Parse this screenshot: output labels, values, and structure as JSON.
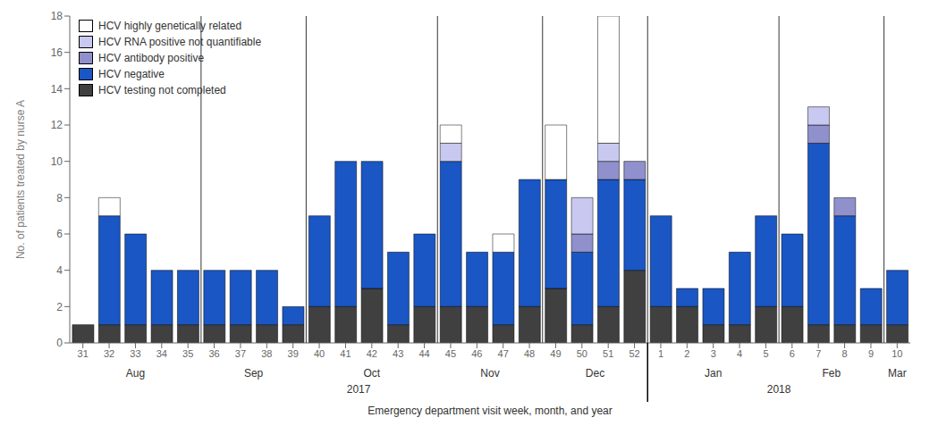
{
  "chart_data": {
    "type": "bar",
    "stacked": true,
    "categories": [
      "31",
      "32",
      "33",
      "34",
      "35",
      "36",
      "37",
      "38",
      "39",
      "40",
      "41",
      "42",
      "43",
      "44",
      "45",
      "46",
      "47",
      "48",
      "49",
      "50",
      "51",
      "52",
      "1",
      "2",
      "3",
      "4",
      "5",
      "6",
      "7",
      "8",
      "9",
      "10"
    ],
    "series": [
      {
        "name": "HCV testing not completed",
        "color": "#404040",
        "values": [
          1,
          1,
          1,
          1,
          1,
          1,
          1,
          1,
          1,
          2,
          2,
          3,
          1,
          2,
          2,
          2,
          1,
          2,
          3,
          1,
          2,
          4,
          2,
          2,
          1,
          1,
          2,
          2,
          1,
          1,
          1,
          1
        ]
      },
      {
        "name": "HCV negative",
        "color": "#1A56C4",
        "values": [
          0,
          6,
          5,
          3,
          3,
          3,
          3,
          3,
          1,
          5,
          8,
          7,
          4,
          4,
          8,
          3,
          4,
          7,
          6,
          4,
          7,
          5,
          5,
          1,
          2,
          4,
          5,
          4,
          10,
          6,
          2,
          3
        ]
      },
      {
        "name": "HCV antibody positive",
        "color": "#9090CC",
        "values": [
          0,
          0,
          0,
          0,
          0,
          0,
          0,
          0,
          0,
          0,
          0,
          0,
          0,
          0,
          0,
          0,
          0,
          0,
          0,
          1,
          1,
          1,
          0,
          0,
          0,
          0,
          0,
          0,
          1,
          1,
          0,
          0
        ]
      },
      {
        "name": "HCV RNA positive not quantifiable",
        "color": "#C8C8F0",
        "values": [
          0,
          0,
          0,
          0,
          0,
          0,
          0,
          0,
          0,
          0,
          0,
          0,
          0,
          0,
          1,
          0,
          0,
          0,
          0,
          2,
          1,
          0,
          0,
          0,
          0,
          0,
          0,
          0,
          1,
          0,
          0,
          0
        ]
      },
      {
        "name": "HCV highly genetically related",
        "color": "#FFFFFF",
        "values": [
          0,
          1,
          0,
          0,
          0,
          0,
          0,
          0,
          0,
          0,
          0,
          0,
          0,
          0,
          1,
          0,
          1,
          0,
          3,
          0,
          7,
          0,
          0,
          0,
          0,
          0,
          0,
          0,
          0,
          0,
          0,
          0
        ]
      }
    ],
    "ylim": [
      0,
      18
    ],
    "yticks": [
      0,
      2,
      4,
      6,
      8,
      10,
      12,
      14,
      16,
      18
    ],
    "ylabel": "No. of patients treated by nurse A",
    "xlabel": "Emergency department visit week, month, and year",
    "month_labels": [
      {
        "text": "Aug",
        "x": 2.0
      },
      {
        "text": "Sep",
        "x": 6.5
      },
      {
        "text": "Oct",
        "x": 11.0
      },
      {
        "text": "Nov",
        "x": 15.5
      },
      {
        "text": "Dec",
        "x": 19.5
      },
      {
        "text": "Jan",
        "x": 24.0
      },
      {
        "text": "Feb",
        "x": 28.5
      },
      {
        "text": "Mar",
        "x": 31.0
      }
    ],
    "year_labels": [
      {
        "text": "2017",
        "x": 10.5
      },
      {
        "text": "2018",
        "x": 26.5
      }
    ],
    "month_dividers": [
      4.5,
      8.5,
      13.5,
      17.5,
      21.5,
      26.5,
      30.5
    ],
    "year_divider": 21.5,
    "grid": false,
    "legend": "upper left"
  }
}
